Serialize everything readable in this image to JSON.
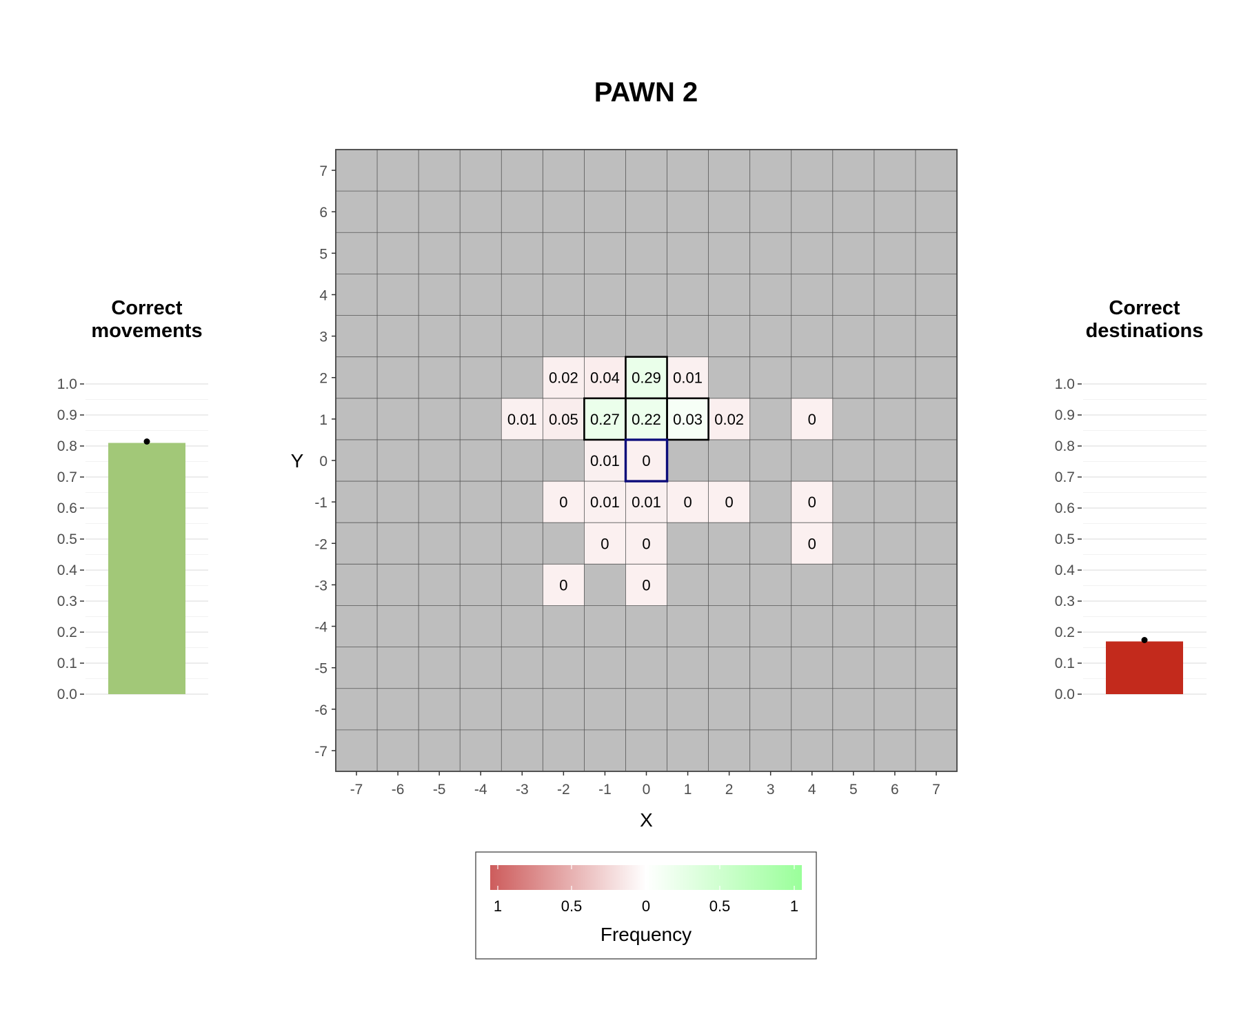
{
  "title": "PAWN 2",
  "chart_data": [
    {
      "type": "heatmap",
      "title": "PAWN 2",
      "xlabel": "X",
      "ylabel": "Y",
      "xlim": [
        -7,
        7
      ],
      "ylim": [
        -7,
        7
      ],
      "x_ticks": [
        "-7",
        "-6",
        "-5",
        "-4",
        "-3",
        "-2",
        "-1",
        "0",
        "1",
        "2",
        "3",
        "4",
        "5",
        "6",
        "7"
      ],
      "y_ticks": [
        "7",
        "6",
        "5",
        "4",
        "3",
        "2",
        "1",
        "0",
        "-1",
        "-2",
        "-3",
        "-4",
        "-5",
        "-6",
        "-7"
      ],
      "empty_cell_color": "#bebebe",
      "origin_cell": {
        "x": 0,
        "y": 0,
        "outline_color": "#0c0c7a"
      },
      "correct_cells": [
        {
          "x": 0,
          "y": 2
        },
        {
          "x": -1,
          "y": 1
        },
        {
          "x": 0,
          "y": 1
        },
        {
          "x": 1,
          "y": 1
        }
      ],
      "cells": [
        {
          "x": -2,
          "y": 2,
          "value": 0.02,
          "label": "0.02",
          "correct": false
        },
        {
          "x": -1,
          "y": 2,
          "value": 0.04,
          "label": "0.04",
          "correct": false
        },
        {
          "x": 0,
          "y": 2,
          "value": 0.29,
          "label": "0.29",
          "correct": true
        },
        {
          "x": 1,
          "y": 2,
          "value": 0.01,
          "label": "0.01",
          "correct": false
        },
        {
          "x": -3,
          "y": 1,
          "value": 0.01,
          "label": "0.01",
          "correct": false
        },
        {
          "x": -2,
          "y": 1,
          "value": 0.05,
          "label": "0.05",
          "correct": false
        },
        {
          "x": -1,
          "y": 1,
          "value": 0.27,
          "label": "0.27",
          "correct": true
        },
        {
          "x": 0,
          "y": 1,
          "value": 0.22,
          "label": "0.22",
          "correct": true
        },
        {
          "x": 1,
          "y": 1,
          "value": 0.03,
          "label": "0.03",
          "correct": true
        },
        {
          "x": 2,
          "y": 1,
          "value": 0.02,
          "label": "0.02",
          "correct": false
        },
        {
          "x": 4,
          "y": 1,
          "value": 0,
          "label": "0",
          "correct": false
        },
        {
          "x": -1,
          "y": 0,
          "value": 0.01,
          "label": "0.01",
          "correct": false
        },
        {
          "x": 0,
          "y": 0,
          "value": 0,
          "label": "0",
          "correct": false
        },
        {
          "x": -2,
          "y": -1,
          "value": 0,
          "label": "0",
          "correct": false
        },
        {
          "x": -1,
          "y": -1,
          "value": 0.01,
          "label": "0.01",
          "correct": false
        },
        {
          "x": 0,
          "y": -1,
          "value": 0.01,
          "label": "0.01",
          "correct": false
        },
        {
          "x": 1,
          "y": -1,
          "value": 0,
          "label": "0",
          "correct": false
        },
        {
          "x": 2,
          "y": -1,
          "value": 0,
          "label": "0",
          "correct": false
        },
        {
          "x": 4,
          "y": -1,
          "value": 0,
          "label": "0",
          "correct": false
        },
        {
          "x": -1,
          "y": -2,
          "value": 0,
          "label": "0",
          "correct": false
        },
        {
          "x": 0,
          "y": -2,
          "value": 0,
          "label": "0",
          "correct": false
        },
        {
          "x": 4,
          "y": -2,
          "value": 0,
          "label": "0",
          "correct": false
        },
        {
          "x": -2,
          "y": -3,
          "value": 0,
          "label": "0",
          "correct": false
        },
        {
          "x": 0,
          "y": -3,
          "value": 0,
          "label": "0",
          "correct": false
        }
      ],
      "legend": {
        "title": "Frequency",
        "tick_labels": [
          "1",
          "0.5",
          "0",
          "0.5",
          "1"
        ],
        "left_color": "#cd5c5c",
        "mid_color": "#ffffff",
        "right_color": "#9aff9a",
        "position": "bottom"
      }
    },
    {
      "type": "bar",
      "title": "Correct movements",
      "title_lines": [
        "Correct",
        "movements"
      ],
      "categories": [
        ""
      ],
      "values": [
        0.81
      ],
      "ylim": [
        0,
        1
      ],
      "y_ticks": [
        "0.0",
        "0.1",
        "0.2",
        "0.3",
        "0.4",
        "0.5",
        "0.6",
        "0.7",
        "0.8",
        "0.9",
        "1.0"
      ],
      "bar_color": "#a2c878"
    },
    {
      "type": "bar",
      "title": "Correct destinations",
      "title_lines": [
        "Correct",
        "destinations"
      ],
      "categories": [
        ""
      ],
      "values": [
        0.17
      ],
      "ylim": [
        0,
        1
      ],
      "y_ticks": [
        "0.0",
        "0.1",
        "0.2",
        "0.3",
        "0.4",
        "0.5",
        "0.6",
        "0.7",
        "0.8",
        "0.9",
        "1.0"
      ],
      "bar_color": "#c32a1c"
    }
  ]
}
